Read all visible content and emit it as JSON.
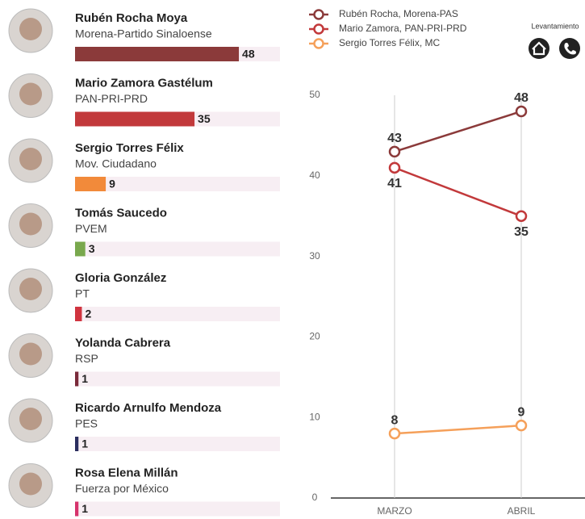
{
  "candidates": [
    {
      "name": "Rubén Rocha Moya",
      "party": "Morena-Partido Sinaloense",
      "value": 48,
      "color": "#8b3a3a"
    },
    {
      "name": "Mario Zamora Gastélum",
      "party": "PAN-PRI-PRD",
      "value": 35,
      "color": "#c2393b"
    },
    {
      "name": "Sergio Torres Félix",
      "party": "Mov. Ciudadano",
      "value": 9,
      "color": "#f28a3a"
    },
    {
      "name": "Tomás Saucedo",
      "party": "PVEM",
      "value": 3,
      "color": "#79a84d"
    },
    {
      "name": "Gloria González",
      "party": "PT",
      "value": 2,
      "color": "#d0343f"
    },
    {
      "name": "Yolanda Cabrera",
      "party": "RSP",
      "value": 1,
      "color": "#7a2a3a"
    },
    {
      "name": "Ricardo Arnulfo Mendoza",
      "party": "PES",
      "value": 1,
      "color": "#2a2d5e"
    },
    {
      "name": "Rosa Elena Millán",
      "party": "Fuerza por México",
      "value": 1,
      "color": "#d6336c"
    }
  ],
  "chart_data": {
    "type": "line",
    "annotation": "Levantamiento",
    "categories": [
      "MARZO",
      "ABRIL"
    ],
    "series": [
      {
        "name": "Rubén Rocha, Morena-PAS",
        "color": "#8b3a3a",
        "values": [
          43,
          48
        ]
      },
      {
        "name": "Mario Zamora, PAN-PRI-PRD",
        "color": "#c2393b",
        "values": [
          41,
          35
        ]
      },
      {
        "name": "Sergio Torres Félix, MC",
        "color": "#f5a05a",
        "values": [
          8,
          9
        ]
      }
    ],
    "ylim": [
      0,
      50
    ],
    "yticks": [
      0,
      10,
      20,
      30,
      40,
      50
    ]
  }
}
